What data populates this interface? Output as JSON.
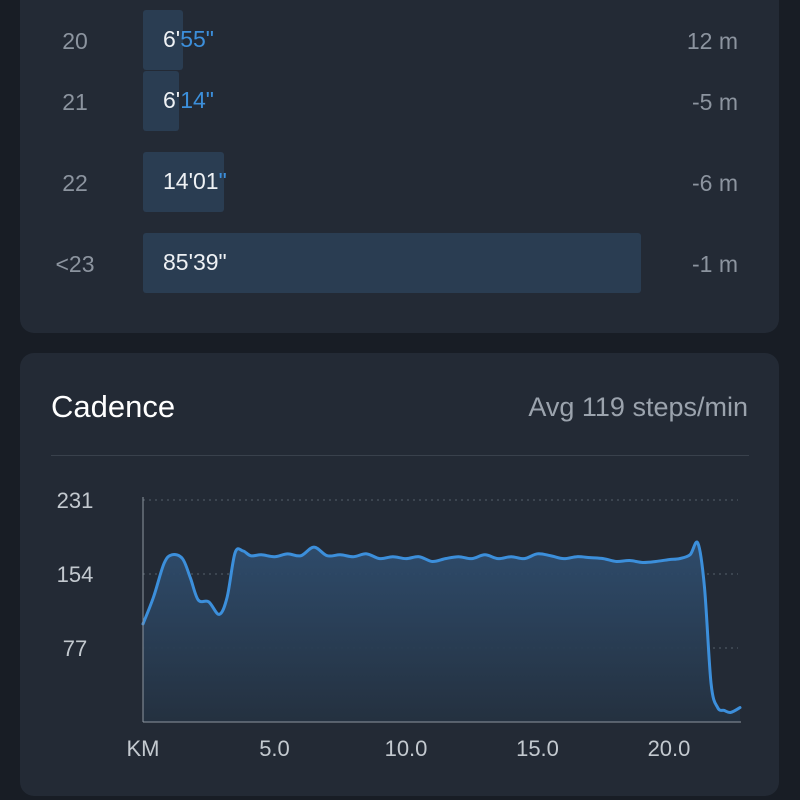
{
  "splits": [
    {
      "km": "20",
      "pace_main": "6'",
      "pace_sec": "55\"",
      "elev": "12 m",
      "fraction": 0.08
    },
    {
      "km": "21",
      "pace_main": "6'",
      "pace_sec": "14\"",
      "elev": "-5 m",
      "fraction": 0.072
    },
    {
      "km": "22",
      "pace_main": "14'01",
      "pace_sec": "\"",
      "elev": "-6 m",
      "fraction": 0.163
    },
    {
      "km": "<23",
      "pace_main": "85'39\"",
      "pace_sec": "",
      "elev": "-1 m",
      "fraction": 1.0
    }
  ],
  "cadence": {
    "title": "Cadence",
    "avg_label": "Avg 119 steps/min"
  },
  "colors": {
    "accent": "#3c8fdb",
    "bar": "#2a3d52",
    "card": "#232a35",
    "background": "#181d25"
  },
  "chart_data": {
    "type": "area",
    "xlabel": "KM",
    "ylabel": "",
    "xlim": [
      0,
      22.7
    ],
    "ylim": [
      0,
      231
    ],
    "x_ticks": [
      5.0,
      10.0,
      15.0,
      20.0
    ],
    "x_tick_labels": [
      "5.0",
      "10.0",
      "15.0",
      "20.0"
    ],
    "y_ticks": [
      77,
      154,
      231
    ],
    "y_tick_labels": [
      "77",
      "154",
      "231"
    ],
    "grid": "horizontal dotted",
    "series": [
      {
        "x": [
          0,
          0.4,
          0.8,
          1.1,
          1.5,
          1.8,
          2.1,
          2.5,
          2.9,
          3.2,
          3.5,
          3.8,
          4.1,
          4.5,
          5.0,
          5.5,
          6.0,
          6.5,
          7.0,
          7.5,
          8.0,
          8.5,
          9.0,
          9.5,
          10.0,
          10.5,
          11.0,
          11.5,
          12.0,
          12.5,
          13.0,
          13.5,
          14.0,
          14.5,
          15.0,
          15.5,
          16.0,
          16.5,
          17.0,
          17.5,
          18.0,
          18.5,
          19.0,
          19.5,
          20.0,
          20.4,
          20.8,
          21.1,
          21.35,
          21.6,
          21.85,
          22.1,
          22.35,
          22.7
        ],
        "values": [
          102,
          130,
          165,
          174,
          170,
          150,
          127,
          125,
          112,
          130,
          176,
          178,
          173,
          174,
          172,
          175,
          173,
          182,
          173,
          174,
          172,
          175,
          170,
          172,
          170,
          172,
          167,
          170,
          172,
          170,
          174,
          170,
          172,
          170,
          175,
          173,
          170,
          172,
          171,
          170,
          167,
          168,
          166,
          167,
          169,
          170,
          174,
          186,
          140,
          40,
          15,
          12,
          10,
          15
        ]
      }
    ]
  }
}
